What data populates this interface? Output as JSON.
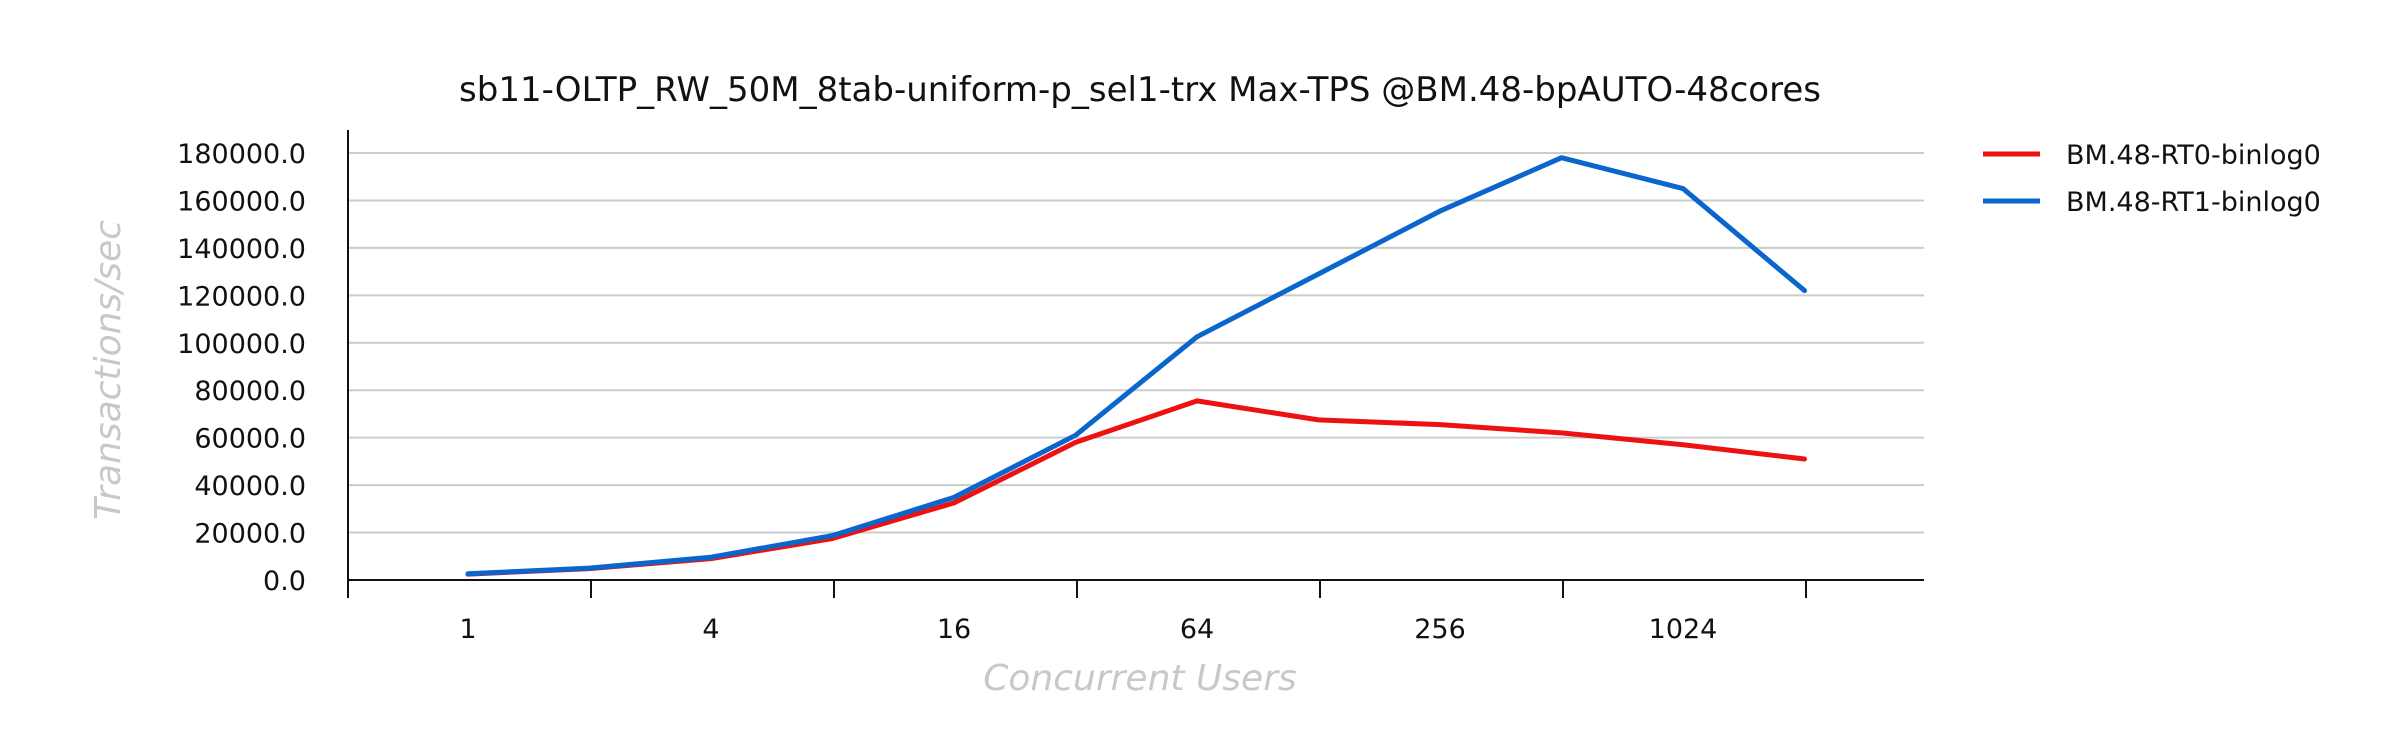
{
  "chart_data": {
    "type": "line",
    "title": "sb11-OLTP_RW_50M_8tab-uniform-p_sel1-trx Max-TPS @BM.48-bpAUTO-48cores",
    "xlabel": "Concurrent Users",
    "ylabel": "Transactions/sec",
    "x": [
      1,
      2,
      4,
      8,
      16,
      32,
      64,
      128,
      256,
      512,
      1024,
      2048
    ],
    "x_scale": "log2",
    "x_tick_labels": [
      "1",
      "4",
      "16",
      "64",
      "256",
      "1024"
    ],
    "y_tick_labels": [
      "0.0",
      "20000.0",
      "40000.0",
      "60000.0",
      "80000.0",
      "100000.0",
      "120000.0",
      "140000.0",
      "160000.0",
      "180000.0"
    ],
    "ylim": [
      0,
      180000
    ],
    "grid": true,
    "legend_position": "right",
    "series": [
      {
        "name": "BM.48-RT0-binlog0",
        "color": "#ee1111",
        "values": [
          2500,
          4800,
          9000,
          17500,
          32500,
          58000,
          75500,
          67500,
          65500,
          62000,
          57000,
          51000
        ]
      },
      {
        "name": "BM.48-RT1-binlog0",
        "color": "#0a66cc",
        "values": [
          2600,
          5000,
          9600,
          18700,
          34800,
          61000,
          102500,
          129000,
          155500,
          178000,
          165000,
          122000
        ]
      }
    ]
  }
}
